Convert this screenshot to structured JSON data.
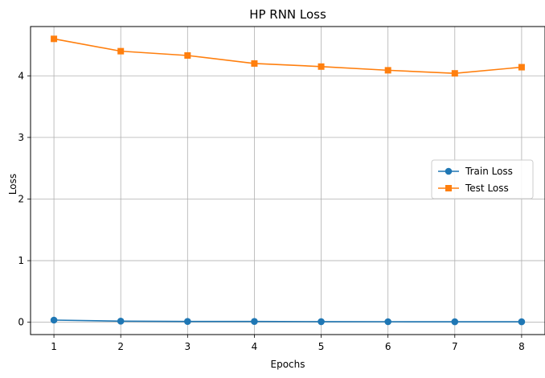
{
  "chart_data": {
    "type": "line",
    "title": "HP RNN Loss",
    "xlabel": "Epochs",
    "ylabel": "Loss",
    "x": [
      1,
      2,
      3,
      4,
      5,
      6,
      7,
      8
    ],
    "xticks": [
      1,
      2,
      3,
      4,
      5,
      6,
      7,
      8
    ],
    "yticks": [
      0,
      1,
      2,
      3,
      4
    ],
    "xlim": [
      0.65,
      8.35
    ],
    "ylim": [
      -0.2,
      4.8
    ],
    "grid": true,
    "legend": "center-right",
    "series": [
      {
        "name": "Train Loss",
        "color": "#1f77b4",
        "marker": "circle",
        "values": [
          0.035,
          0.018,
          0.013,
          0.013,
          0.01,
          0.009,
          0.008,
          0.008
        ]
      },
      {
        "name": "Test Loss",
        "color": "#ff7f0e",
        "marker": "square",
        "values": [
          4.6,
          4.4,
          4.33,
          4.2,
          4.15,
          4.09,
          4.04,
          4.14
        ]
      }
    ]
  }
}
